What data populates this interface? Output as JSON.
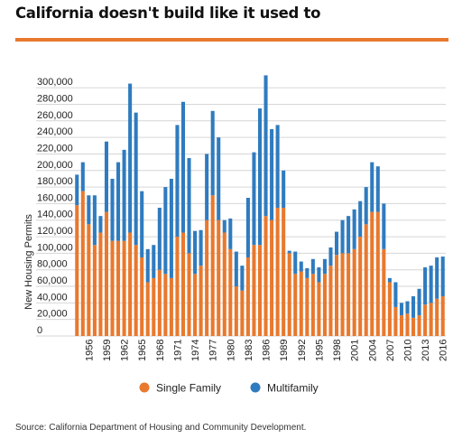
{
  "title": "California doesn't build like it used to",
  "source": "Source: California Department of Housing and Community Development.",
  "colors": {
    "accent": "#e8792e",
    "single_family": "#e8792e",
    "multifamily": "#2f7bbf"
  },
  "chart_data": {
    "type": "bar",
    "stacked": true,
    "ylabel": "New Housing Permits",
    "ylim": [
      0,
      310000
    ],
    "yticks": [
      0,
      20000,
      40000,
      60000,
      80000,
      100000,
      120000,
      140000,
      160000,
      180000,
      200000,
      220000,
      240000,
      260000,
      280000,
      300000
    ],
    "ytick_labels": [
      "0",
      "20,000",
      "40,000",
      "60,000",
      "80,000",
      "100,000",
      "120,000",
      "140,000",
      "160,000",
      "180,000",
      "200,000",
      "220,000",
      "240,000",
      "260,000",
      "280,000",
      "300,000"
    ],
    "legend_position": "bottom",
    "categories": [
      1954,
      1955,
      1956,
      1957,
      1958,
      1959,
      1960,
      1961,
      1962,
      1963,
      1964,
      1965,
      1966,
      1967,
      1968,
      1969,
      1970,
      1971,
      1972,
      1973,
      1974,
      1975,
      1976,
      1977,
      1978,
      1979,
      1980,
      1981,
      1982,
      1983,
      1984,
      1985,
      1986,
      1987,
      1988,
      1989,
      1990,
      1991,
      1992,
      1993,
      1994,
      1995,
      1996,
      1997,
      1998,
      1999,
      2000,
      2001,
      2002,
      2003,
      2004,
      2005,
      2006,
      2007,
      2008,
      2009,
      2010,
      2011,
      2012,
      2013,
      2014,
      2015,
      2016
    ],
    "xtick_labels": [
      "1956",
      "1959",
      "1962",
      "1965",
      "1968",
      "1971",
      "1974",
      "1977",
      "1980",
      "1983",
      "1986",
      "1989",
      "1992",
      "1995",
      "1998",
      "2001",
      "2004",
      "2007",
      "2010",
      "2013",
      "2016"
    ],
    "series": [
      {
        "name": "Single Family",
        "values": [
          158000,
          175000,
          135000,
          110000,
          125000,
          150000,
          115000,
          115000,
          115000,
          125000,
          110000,
          95000,
          65000,
          70000,
          80000,
          75000,
          70000,
          120000,
          125000,
          100000,
          75000,
          85000,
          140000,
          170000,
          140000,
          125000,
          105000,
          60000,
          55000,
          95000,
          110000,
          110000,
          145000,
          140000,
          155000,
          155000,
          100000,
          75000,
          78000,
          70000,
          75000,
          65000,
          75000,
          85000,
          98000,
          100000,
          100000,
          105000,
          120000,
          135000,
          150000,
          150000,
          105000,
          65000,
          35000,
          25000,
          27000,
          22000,
          25000,
          38000,
          40000,
          45000,
          48000
        ]
      },
      {
        "name": "Multifamily",
        "values": [
          37000,
          35000,
          35000,
          60000,
          20000,
          85000,
          75000,
          95000,
          110000,
          180000,
          160000,
          80000,
          40000,
          40000,
          75000,
          105000,
          120000,
          135000,
          158000,
          115000,
          52000,
          43000,
          80000,
          102000,
          100000,
          15000,
          37000,
          42000,
          30000,
          72000,
          112000,
          165000,
          170000,
          110000,
          100000,
          45000,
          3000,
          27000,
          12000,
          12000,
          18000,
          18000,
          18000,
          22000,
          28000,
          40000,
          45000,
          48000,
          43000,
          45000,
          60000,
          55000,
          55000,
          5000,
          30000,
          15000,
          15000,
          26000,
          32000,
          45000,
          45000,
          50000,
          48000
        ]
      }
    ]
  }
}
